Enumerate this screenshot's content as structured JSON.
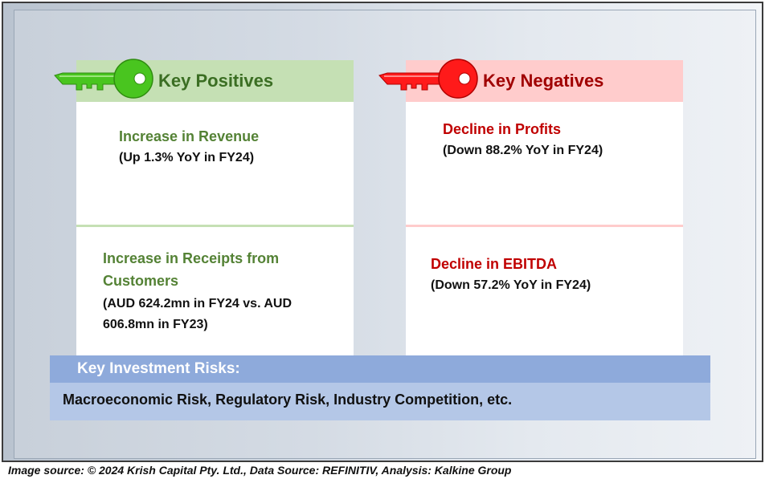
{
  "positives": {
    "heading": "Key Positives",
    "items": [
      {
        "title": "Increase in Revenue",
        "detail": "(Up 1.3% YoY in FY24)"
      },
      {
        "title_line1": "Increase in Receipts from",
        "title_line2": "Customers",
        "detail_line1": "(AUD 624.2mn in FY24 vs. AUD",
        "detail_line2": "606.8mn in FY23)"
      }
    ]
  },
  "negatives": {
    "heading": "Key Negatives",
    "items": [
      {
        "title": "Decline in Profits",
        "detail": "(Down 88.2% YoY in FY24)"
      },
      {
        "title": "Decline in EBITDA",
        "detail": "(Down 57.2% YoY in FY24)"
      }
    ]
  },
  "risks": {
    "heading": "Key Investment Risks:",
    "text": "Macroeconomic Risk, Regulatory Risk, Industry Competition, etc."
  },
  "footer": "Image source: © 2024 Krish Capital Pty. Ltd., Data Source: REFINITIV, Analysis: Kalkine Group",
  "colors": {
    "positive_header": "#c5e0b4",
    "positive_text": "#548235",
    "negative_header": "#ffcccc",
    "negative_text": "#c00000",
    "risk_header": "#8eaadb",
    "risk_body": "#b4c7e7",
    "green_key": "#49c51f",
    "red_key": "#ff1a1a"
  },
  "icons": [
    "green-key-icon",
    "red-key-icon"
  ]
}
